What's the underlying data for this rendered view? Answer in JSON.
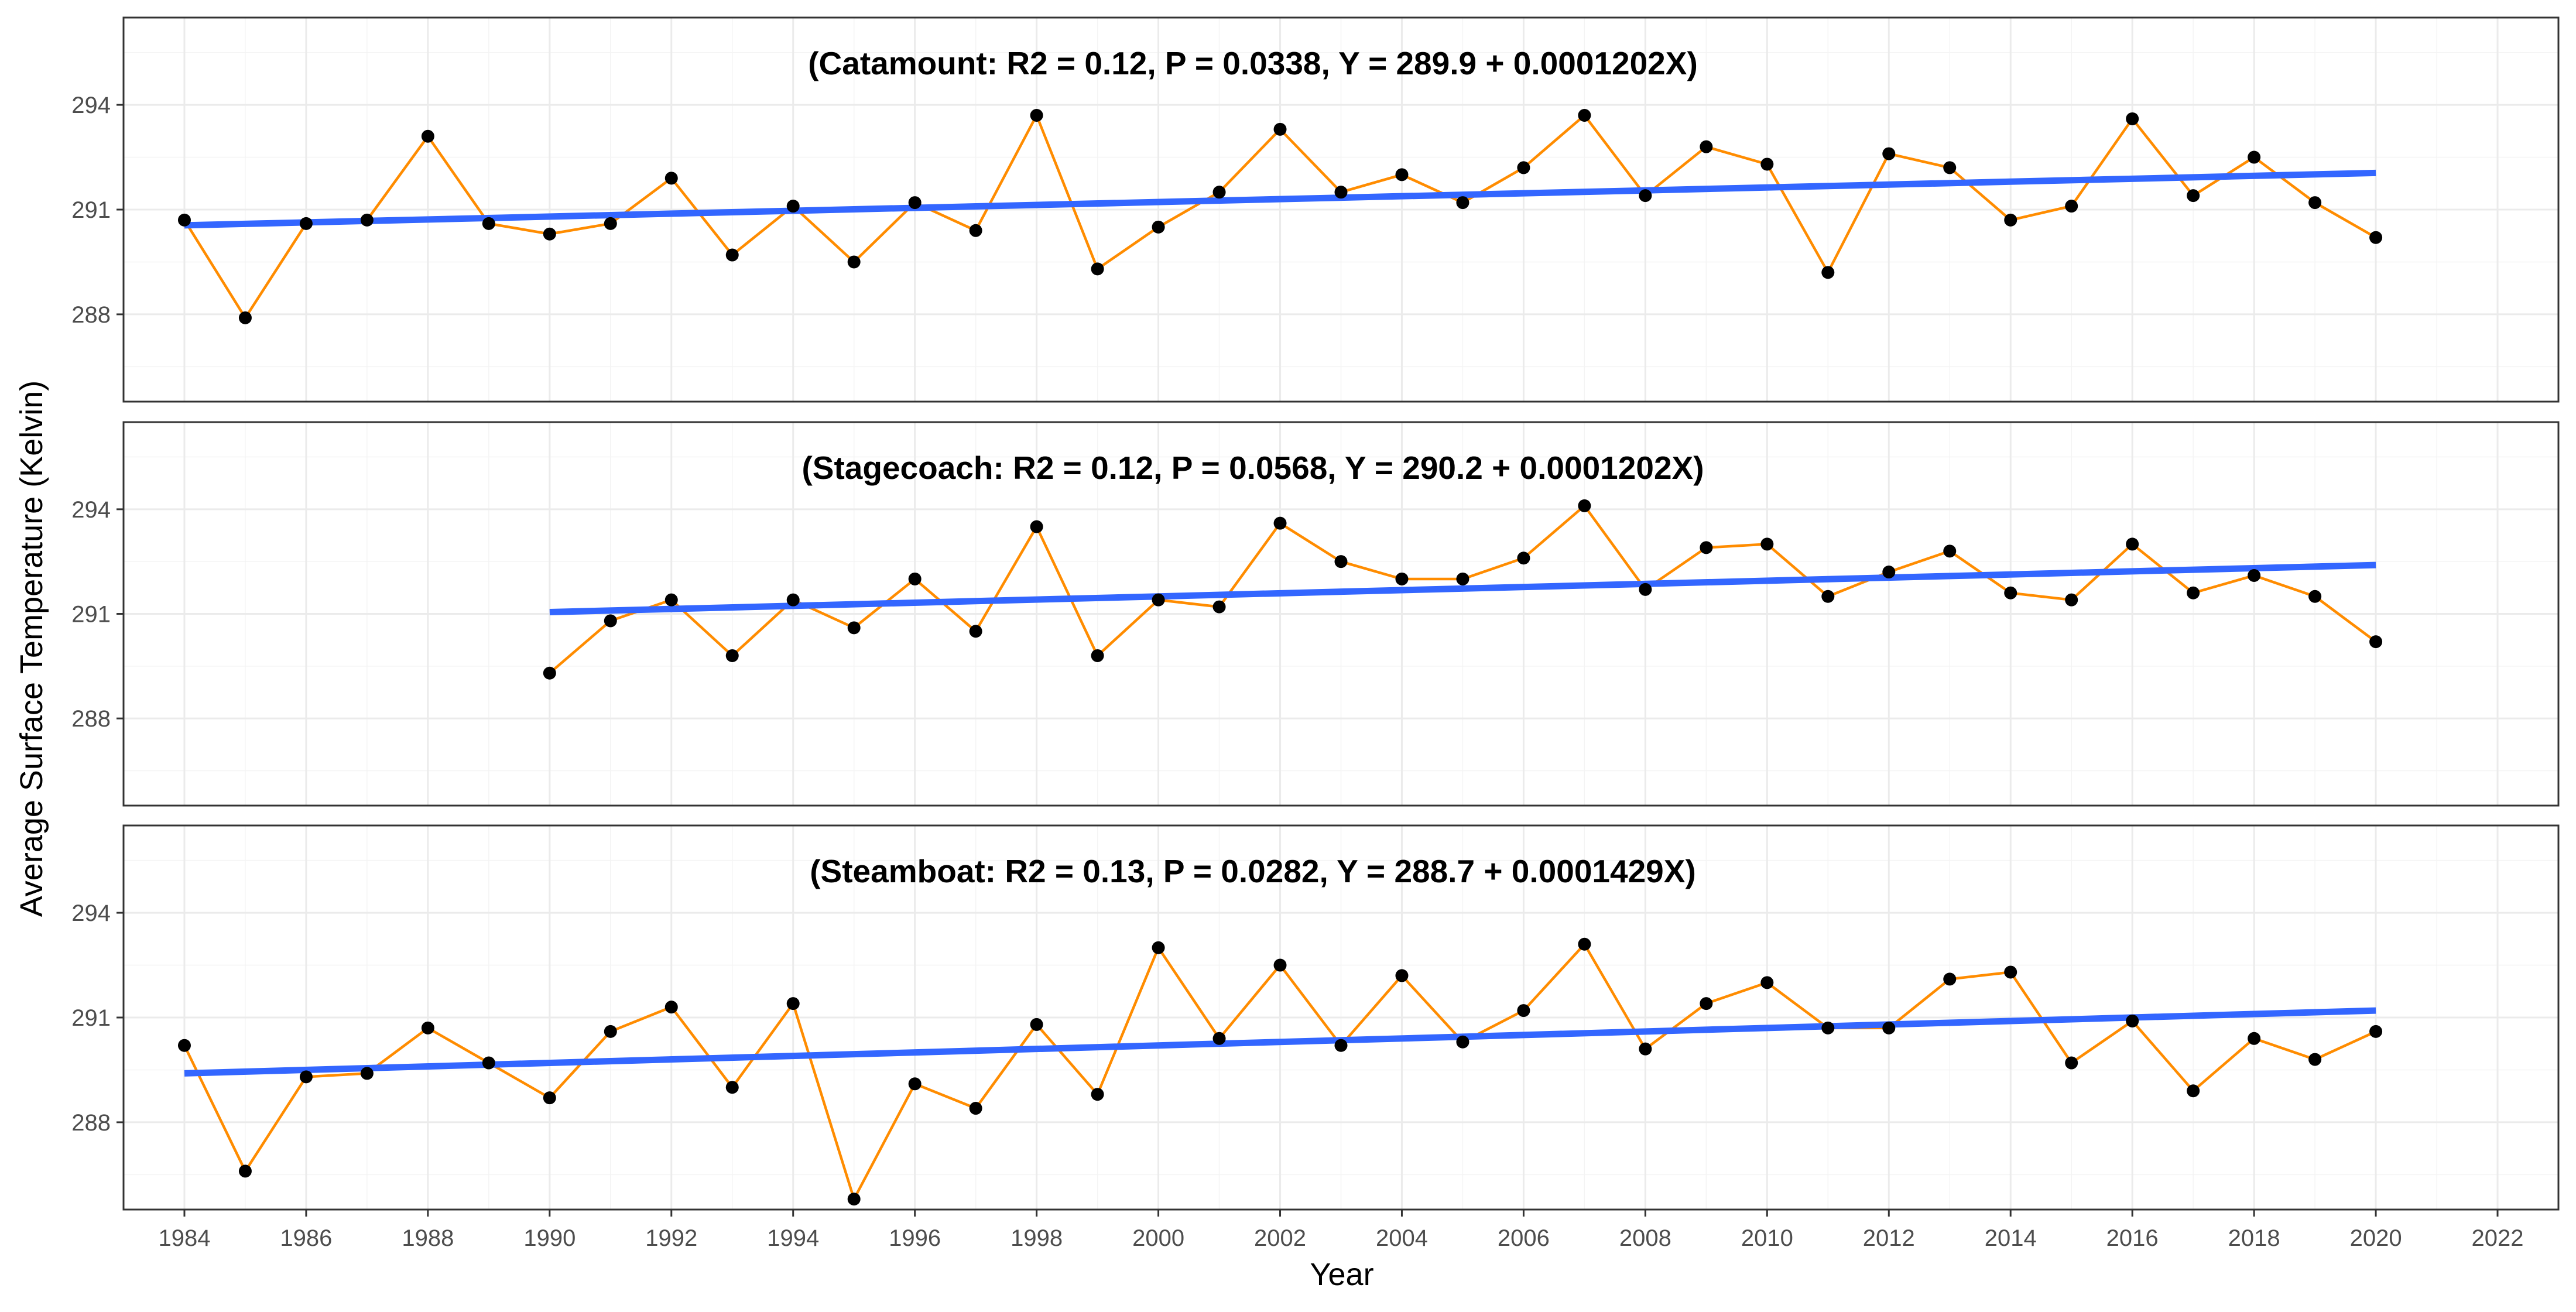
{
  "chart_data": {
    "type": "line",
    "xlabel": "Year",
    "ylabel": "Average Surface Temperature (Kelvin)",
    "xlim": [
      1983,
      2023
    ],
    "x_ticks": [
      1984,
      1986,
      1988,
      1990,
      1992,
      1994,
      1996,
      1998,
      2000,
      2002,
      2004,
      2006,
      2008,
      2010,
      2012,
      2014,
      2016,
      2018,
      2020,
      2022
    ],
    "ylim": [
      285.5,
      296.5
    ],
    "y_ticks": [
      288,
      291,
      294
    ],
    "grid": true,
    "colors": {
      "series": "#ff8c00",
      "points": "#000000",
      "trend": "#3366ff"
    },
    "panels": [
      {
        "title": "(Catamount: R2 = 0.12, P = 0.0338, Y = 289.9 + 0.0001202X)",
        "x": [
          1984,
          1985,
          1986,
          1987,
          1988,
          1989,
          1990,
          1991,
          1992,
          1993,
          1994,
          1995,
          1996,
          1997,
          1998,
          1999,
          2000,
          2001,
          2002,
          2003,
          2004,
          2005,
          2006,
          2007,
          2008,
          2009,
          2010,
          2011,
          2012,
          2013,
          2014,
          2015,
          2016,
          2017,
          2018,
          2019,
          2020
        ],
        "y": [
          290.7,
          287.9,
          290.6,
          290.7,
          293.1,
          290.6,
          290.3,
          290.6,
          291.9,
          289.7,
          291.1,
          289.5,
          291.2,
          290.4,
          293.7,
          289.3,
          290.5,
          291.5,
          293.3,
          291.5,
          292.0,
          291.2,
          292.2,
          293.7,
          291.4,
          292.8,
          292.3,
          289.2,
          292.6,
          292.2,
          290.7,
          291.1,
          293.6,
          291.4,
          292.5,
          291.2,
          290.2
        ],
        "trend": {
          "x": [
            1984,
            2020
          ],
          "y": [
            290.55,
            292.05
          ]
        }
      },
      {
        "title": "(Stagecoach: R2 = 0.12, P = 0.0568, Y = 290.2 + 0.0001202X)",
        "x": [
          1990,
          1991,
          1992,
          1993,
          1994,
          1995,
          1996,
          1997,
          1998,
          1999,
          2000,
          2001,
          2002,
          2003,
          2004,
          2005,
          2006,
          2007,
          2008,
          2009,
          2010,
          2011,
          2012,
          2013,
          2014,
          2015,
          2016,
          2017,
          2018,
          2019,
          2020
        ],
        "y": [
          289.3,
          290.8,
          291.4,
          289.8,
          291.4,
          290.6,
          292.0,
          290.5,
          293.5,
          289.8,
          291.4,
          291.2,
          293.6,
          292.5,
          292.0,
          292.0,
          292.6,
          294.1,
          291.7,
          292.9,
          293.0,
          291.5,
          292.2,
          292.8,
          291.6,
          291.4,
          293.0,
          291.6,
          292.1,
          291.5,
          290.2
        ],
        "trend": {
          "x": [
            1990,
            2020
          ],
          "y": [
            291.05,
            292.4
          ]
        }
      },
      {
        "title": "(Steamboat: R2 = 0.13, P = 0.0282, Y = 288.7 + 0.0001429X)",
        "x": [
          1984,
          1985,
          1986,
          1987,
          1988,
          1989,
          1990,
          1991,
          1992,
          1993,
          1994,
          1995,
          1996,
          1997,
          1998,
          1999,
          2000,
          2001,
          2002,
          2003,
          2004,
          2005,
          2006,
          2007,
          2008,
          2009,
          2010,
          2011,
          2012,
          2013,
          2014,
          2015,
          2016,
          2017,
          2018,
          2019,
          2020
        ],
        "y": [
          290.2,
          286.6,
          289.3,
          289.4,
          290.7,
          289.7,
          288.7,
          290.6,
          291.3,
          289.0,
          291.4,
          285.8,
          289.1,
          288.4,
          290.8,
          288.8,
          293.0,
          290.4,
          292.5,
          290.2,
          292.2,
          290.3,
          291.2,
          293.1,
          290.1,
          291.4,
          292.0,
          290.7,
          290.7,
          292.1,
          292.3,
          289.7,
          290.9,
          288.9,
          290.4,
          289.8,
          290.6
        ],
        "trend": {
          "x": [
            1984,
            2020
          ],
          "y": [
            289.4,
            291.2
          ]
        }
      }
    ]
  }
}
